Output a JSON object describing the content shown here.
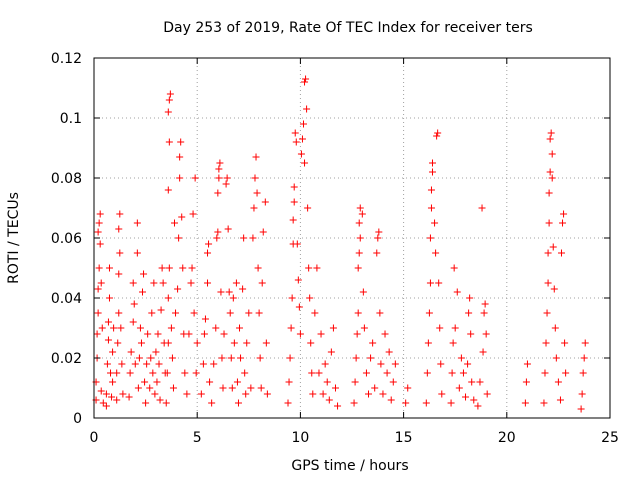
{
  "chart_data": {
    "type": "scatter",
    "title": "Day 253 of 2019, Rate Of TEC Index for receiver ters",
    "xlabel": "GPS time / hours",
    "ylabel": "ROTI / TECUs",
    "xlim": [
      0,
      25
    ],
    "ylim": [
      0,
      0.12
    ],
    "x_ticks": [
      "0",
      "5",
      "10",
      "15",
      "20",
      "25"
    ],
    "y_ticks": [
      "0",
      "0.02",
      "0.04",
      "0.06",
      "0.08",
      "0.1",
      "0.12"
    ],
    "grid": true,
    "marker": "+",
    "color": "#ff0000",
    "series": [
      {
        "name": "ROTI",
        "points": [
          [
            0.1,
            0.006
          ],
          [
            0.1,
            0.012
          ],
          [
            0.15,
            0.02
          ],
          [
            0.15,
            0.028
          ],
          [
            0.2,
            0.035
          ],
          [
            0.2,
            0.043
          ],
          [
            0.25,
            0.05
          ],
          [
            0.2,
            0.062
          ],
          [
            0.25,
            0.065
          ],
          [
            0.3,
            0.068
          ],
          [
            0.3,
            0.058
          ],
          [
            0.35,
            0.045
          ],
          [
            0.4,
            0.03
          ],
          [
            0.35,
            0.009
          ],
          [
            0.45,
            0.005
          ],
          [
            0.6,
            0.004
          ],
          [
            0.6,
            0.008
          ],
          [
            0.65,
            0.018
          ],
          [
            0.7,
            0.026
          ],
          [
            0.7,
            0.032
          ],
          [
            0.75,
            0.04
          ],
          [
            0.75,
            0.05
          ],
          [
            0.8,
            0.015
          ],
          [
            0.85,
            0.007
          ],
          [
            0.9,
            0.012
          ],
          [
            0.9,
            0.022
          ],
          [
            0.95,
            0.03
          ],
          [
            1.1,
            0.006
          ],
          [
            1.1,
            0.015
          ],
          [
            1.15,
            0.025
          ],
          [
            1.2,
            0.035
          ],
          [
            1.2,
            0.048
          ],
          [
            1.25,
            0.055
          ],
          [
            1.2,
            0.063
          ],
          [
            1.25,
            0.068
          ],
          [
            1.3,
            0.03
          ],
          [
            1.35,
            0.018
          ],
          [
            1.4,
            0.008
          ],
          [
            1.7,
            0.007
          ],
          [
            1.75,
            0.015
          ],
          [
            1.8,
            0.022
          ],
          [
            1.9,
            0.032
          ],
          [
            1.9,
            0.045
          ],
          [
            1.95,
            0.038
          ],
          [
            2.0,
            0.018
          ],
          [
            2.1,
            0.055
          ],
          [
            2.1,
            0.065
          ],
          [
            2.15,
            0.01
          ],
          [
            2.2,
            0.02
          ],
          [
            2.25,
            0.03
          ],
          [
            2.3,
            0.025
          ],
          [
            2.35,
            0.042
          ],
          [
            2.4,
            0.048
          ],
          [
            2.45,
            0.012
          ],
          [
            2.5,
            0.005
          ],
          [
            2.55,
            0.018
          ],
          [
            2.6,
            0.028
          ],
          [
            2.7,
            0.01
          ],
          [
            2.75,
            0.02
          ],
          [
            2.8,
            0.035
          ],
          [
            2.85,
            0.015
          ],
          [
            2.9,
            0.045
          ],
          [
            2.95,
            0.008
          ],
          [
            3.0,
            0.022
          ],
          [
            3.05,
            0.012
          ],
          [
            3.1,
            0.028
          ],
          [
            3.15,
            0.018
          ],
          [
            3.2,
            0.006
          ],
          [
            3.25,
            0.036
          ],
          [
            3.3,
            0.05
          ],
          [
            3.35,
            0.045
          ],
          [
            3.4,
            0.025
          ],
          [
            3.45,
            0.015
          ],
          [
            3.5,
            0.005
          ],
          [
            3.55,
            0.015
          ],
          [
            3.6,
            0.025
          ],
          [
            3.6,
            0.04
          ],
          [
            3.65,
            0.05
          ],
          [
            3.6,
            0.076
          ],
          [
            3.65,
            0.092
          ],
          [
            3.6,
            0.102
          ],
          [
            3.65,
            0.106
          ],
          [
            3.7,
            0.108
          ],
          [
            3.75,
            0.03
          ],
          [
            3.8,
            0.02
          ],
          [
            3.85,
            0.01
          ],
          [
            3.9,
            0.065
          ],
          [
            3.95,
            0.035
          ],
          [
            4.05,
            0.043
          ],
          [
            4.1,
            0.06
          ],
          [
            4.15,
            0.08
          ],
          [
            4.15,
            0.087
          ],
          [
            4.2,
            0.092
          ],
          [
            4.25,
            0.067
          ],
          [
            4.3,
            0.05
          ],
          [
            4.35,
            0.028
          ],
          [
            4.4,
            0.015
          ],
          [
            4.5,
            0.008
          ],
          [
            4.6,
            0.028
          ],
          [
            4.7,
            0.045
          ],
          [
            4.75,
            0.05
          ],
          [
            4.8,
            0.068
          ],
          [
            4.85,
            0.035
          ],
          [
            4.9,
            0.08
          ],
          [
            4.95,
            0.015
          ],
          [
            5.0,
            0.025
          ],
          [
            5.2,
            0.008
          ],
          [
            5.3,
            0.018
          ],
          [
            5.35,
            0.028
          ],
          [
            5.4,
            0.033
          ],
          [
            5.5,
            0.045
          ],
          [
            5.5,
            0.055
          ],
          [
            5.55,
            0.058
          ],
          [
            5.6,
            0.012
          ],
          [
            5.7,
            0.005
          ],
          [
            5.8,
            0.018
          ],
          [
            5.9,
            0.03
          ],
          [
            5.95,
            0.06
          ],
          [
            6.0,
            0.062
          ],
          [
            6.0,
            0.075
          ],
          [
            6.05,
            0.08
          ],
          [
            6.05,
            0.083
          ],
          [
            6.1,
            0.085
          ],
          [
            6.15,
            0.042
          ],
          [
            6.2,
            0.02
          ],
          [
            6.25,
            0.01
          ],
          [
            6.3,
            0.028
          ],
          [
            6.4,
            0.078
          ],
          [
            6.45,
            0.08
          ],
          [
            6.5,
            0.063
          ],
          [
            6.55,
            0.042
          ],
          [
            6.6,
            0.035
          ],
          [
            6.65,
            0.02
          ],
          [
            6.7,
            0.01
          ],
          [
            6.75,
            0.04
          ],
          [
            6.8,
            0.025
          ],
          [
            6.9,
            0.045
          ],
          [
            6.95,
            0.012
          ],
          [
            7.0,
            0.005
          ],
          [
            7.05,
            0.03
          ],
          [
            7.1,
            0.02
          ],
          [
            7.2,
            0.043
          ],
          [
            7.25,
            0.06
          ],
          [
            7.3,
            0.015
          ],
          [
            7.35,
            0.008
          ],
          [
            7.4,
            0.025
          ],
          [
            7.5,
            0.035
          ],
          [
            7.6,
            0.01
          ],
          [
            7.7,
            0.06
          ],
          [
            7.75,
            0.07
          ],
          [
            7.8,
            0.08
          ],
          [
            7.85,
            0.087
          ],
          [
            7.9,
            0.075
          ],
          [
            7.95,
            0.05
          ],
          [
            8.0,
            0.035
          ],
          [
            8.05,
            0.02
          ],
          [
            8.1,
            0.01
          ],
          [
            8.15,
            0.045
          ],
          [
            8.2,
            0.062
          ],
          [
            8.3,
            0.072
          ],
          [
            8.35,
            0.025
          ],
          [
            8.4,
            0.008
          ],
          [
            9.4,
            0.005
          ],
          [
            9.45,
            0.012
          ],
          [
            9.5,
            0.02
          ],
          [
            9.55,
            0.03
          ],
          [
            9.6,
            0.04
          ],
          [
            9.65,
            0.058
          ],
          [
            9.65,
            0.066
          ],
          [
            9.7,
            0.072
          ],
          [
            9.7,
            0.077
          ],
          [
            9.75,
            0.095
          ],
          [
            9.8,
            0.092
          ],
          [
            9.85,
            0.058
          ],
          [
            9.9,
            0.046
          ],
          [
            9.95,
            0.037
          ],
          [
            10.0,
            0.028
          ],
          [
            10.05,
            0.088
          ],
          [
            10.1,
            0.093
          ],
          [
            10.15,
            0.098
          ],
          [
            10.2,
            0.085
          ],
          [
            10.2,
            0.112
          ],
          [
            10.25,
            0.113
          ],
          [
            10.3,
            0.103
          ],
          [
            10.35,
            0.07
          ],
          [
            10.4,
            0.05
          ],
          [
            10.45,
            0.04
          ],
          [
            10.5,
            0.025
          ],
          [
            10.55,
            0.015
          ],
          [
            10.6,
            0.008
          ],
          [
            10.7,
            0.035
          ],
          [
            10.8,
            0.05
          ],
          [
            10.9,
            0.015
          ],
          [
            11.0,
            0.028
          ],
          [
            11.1,
            0.008
          ],
          [
            11.2,
            0.018
          ],
          [
            11.3,
            0.012
          ],
          [
            11.4,
            0.006
          ],
          [
            11.5,
            0.022
          ],
          [
            11.6,
            0.03
          ],
          [
            11.7,
            0.01
          ],
          [
            11.8,
            0.004
          ],
          [
            12.6,
            0.005
          ],
          [
            12.65,
            0.012
          ],
          [
            12.7,
            0.02
          ],
          [
            12.75,
            0.028
          ],
          [
            12.8,
            0.035
          ],
          [
            12.8,
            0.05
          ],
          [
            12.85,
            0.055
          ],
          [
            12.9,
            0.06
          ],
          [
            12.85,
            0.065
          ],
          [
            12.9,
            0.07
          ],
          [
            13.0,
            0.068
          ],
          [
            13.05,
            0.042
          ],
          [
            13.1,
            0.03
          ],
          [
            13.2,
            0.015
          ],
          [
            13.3,
            0.008
          ],
          [
            13.4,
            0.02
          ],
          [
            13.5,
            0.025
          ],
          [
            13.6,
            0.01
          ],
          [
            13.7,
            0.055
          ],
          [
            13.75,
            0.06
          ],
          [
            13.8,
            0.062
          ],
          [
            13.85,
            0.035
          ],
          [
            13.9,
            0.018
          ],
          [
            14.0,
            0.008
          ],
          [
            14.1,
            0.028
          ],
          [
            14.2,
            0.015
          ],
          [
            14.3,
            0.022
          ],
          [
            14.4,
            0.006
          ],
          [
            14.5,
            0.012
          ],
          [
            14.6,
            0.018
          ],
          [
            15.1,
            0.005
          ],
          [
            15.2,
            0.01
          ],
          [
            16.1,
            0.005
          ],
          [
            16.15,
            0.015
          ],
          [
            16.2,
            0.025
          ],
          [
            16.25,
            0.035
          ],
          [
            16.3,
            0.045
          ],
          [
            16.3,
            0.06
          ],
          [
            16.35,
            0.07
          ],
          [
            16.35,
            0.076
          ],
          [
            16.4,
            0.082
          ],
          [
            16.4,
            0.085
          ],
          [
            16.5,
            0.065
          ],
          [
            16.55,
            0.055
          ],
          [
            16.6,
            0.094
          ],
          [
            16.65,
            0.095
          ],
          [
            16.7,
            0.045
          ],
          [
            16.75,
            0.03
          ],
          [
            16.8,
            0.018
          ],
          [
            16.85,
            0.008
          ],
          [
            17.3,
            0.005
          ],
          [
            17.35,
            0.015
          ],
          [
            17.4,
            0.025
          ],
          [
            17.45,
            0.05
          ],
          [
            17.5,
            0.03
          ],
          [
            17.6,
            0.042
          ],
          [
            17.7,
            0.01
          ],
          [
            17.8,
            0.02
          ],
          [
            17.9,
            0.015
          ],
          [
            18.0,
            0.007
          ],
          [
            18.1,
            0.018
          ],
          [
            18.15,
            0.035
          ],
          [
            18.2,
            0.04
          ],
          [
            18.25,
            0.028
          ],
          [
            18.3,
            0.012
          ],
          [
            18.4,
            0.006
          ],
          [
            18.6,
            0.004
          ],
          [
            18.7,
            0.012
          ],
          [
            18.8,
            0.07
          ],
          [
            18.85,
            0.022
          ],
          [
            18.9,
            0.035
          ],
          [
            18.95,
            0.038
          ],
          [
            19.0,
            0.028
          ],
          [
            19.05,
            0.008
          ],
          [
            20.9,
            0.005
          ],
          [
            20.95,
            0.012
          ],
          [
            21.0,
            0.018
          ],
          [
            21.8,
            0.005
          ],
          [
            21.85,
            0.015
          ],
          [
            21.9,
            0.025
          ],
          [
            21.95,
            0.035
          ],
          [
            22.0,
            0.045
          ],
          [
            22.0,
            0.055
          ],
          [
            22.05,
            0.065
          ],
          [
            22.05,
            0.075
          ],
          [
            22.1,
            0.082
          ],
          [
            22.1,
            0.093
          ],
          [
            22.15,
            0.095
          ],
          [
            22.2,
            0.088
          ],
          [
            22.2,
            0.08
          ],
          [
            22.25,
            0.057
          ],
          [
            22.3,
            0.043
          ],
          [
            22.35,
            0.03
          ],
          [
            22.4,
            0.02
          ],
          [
            22.5,
            0.012
          ],
          [
            22.6,
            0.006
          ],
          [
            22.65,
            0.055
          ],
          [
            22.7,
            0.065
          ],
          [
            22.75,
            0.068
          ],
          [
            22.8,
            0.025
          ],
          [
            22.85,
            0.015
          ],
          [
            23.6,
            0.003
          ],
          [
            23.65,
            0.008
          ],
          [
            23.7,
            0.015
          ],
          [
            23.75,
            0.02
          ],
          [
            23.8,
            0.025
          ]
        ]
      }
    ]
  }
}
